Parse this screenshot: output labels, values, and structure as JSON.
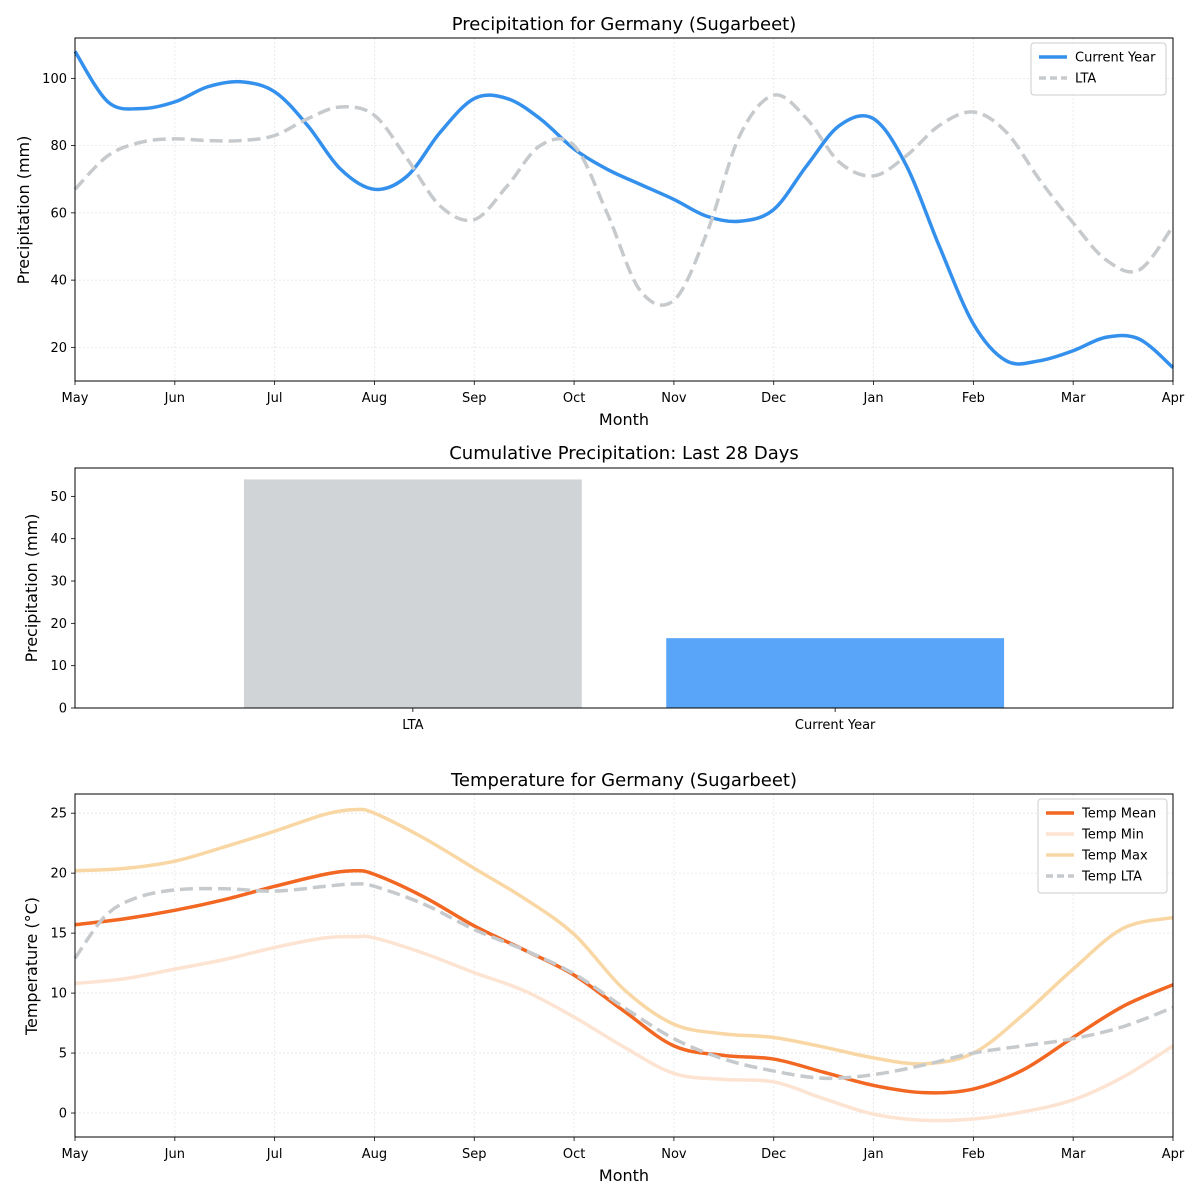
{
  "chart_data": [
    {
      "type": "line",
      "title": "Precipitation for Germany (Sugarbeet)",
      "xlabel": "Month",
      "ylabel": "Precipitation (mm)",
      "categories": [
        "May",
        "Jun",
        "Jul",
        "Aug",
        "Sep",
        "Oct",
        "Nov",
        "Dec",
        "Jan",
        "Feb",
        "Mar",
        "Apr"
      ],
      "xlim": [
        0,
        11
      ],
      "ylim": [
        10,
        112
      ],
      "yticks": [
        20,
        40,
        60,
        80,
        100
      ],
      "grid": true,
      "legend": "top-right",
      "series": [
        {
          "name": "Current Year",
          "color": "#3490ed",
          "style": "solid",
          "x": [
            0,
            0.33,
            0.66,
            1.0,
            1.33,
            1.66,
            2.0,
            2.33,
            2.66,
            3.0,
            3.33,
            3.66,
            4.0,
            4.33,
            4.66,
            5.0,
            5.33,
            5.66,
            6.0,
            6.33,
            6.66,
            7.0,
            7.33,
            7.66,
            8.0,
            8.33,
            8.66,
            9.0,
            9.33,
            9.66,
            10.0,
            10.33,
            10.66,
            11.0
          ],
          "values": [
            108,
            93,
            91,
            93,
            97.5,
            99,
            96,
            86,
            73,
            67,
            71,
            84,
            94,
            94,
            88,
            79,
            73,
            68.5,
            64,
            59,
            57.5,
            61,
            74,
            86,
            88,
            74,
            50,
            27,
            16,
            16,
            19,
            23,
            22.5,
            14
          ]
        },
        {
          "name": "LTA",
          "color": "#c7cacd",
          "style": "dashed",
          "x": [
            0,
            0.33,
            0.66,
            1.0,
            1.33,
            1.66,
            2.0,
            2.33,
            2.66,
            3.0,
            3.33,
            3.66,
            4.0,
            4.33,
            4.66,
            5.0,
            5.33,
            5.66,
            6.0,
            6.33,
            6.66,
            7.0,
            7.33,
            7.66,
            8.0,
            8.33,
            8.66,
            9.0,
            9.33,
            9.66,
            10.0,
            10.33,
            10.66,
            11.0
          ],
          "values": [
            67,
            77,
            81,
            82,
            81.5,
            81.5,
            83,
            88,
            91.5,
            89,
            76,
            62,
            58,
            68,
            80,
            80,
            60,
            37,
            34,
            54,
            83,
            95,
            88,
            75,
            71,
            77,
            86,
            90,
            84,
            70,
            57,
            46,
            43,
            56
          ]
        }
      ]
    },
    {
      "type": "bar",
      "title": "Cumulative Precipitation: Last 28 Days",
      "xlabel": "",
      "ylabel": "Precipitation (mm)",
      "categories": [
        "LTA",
        "Current Year"
      ],
      "values": [
        54,
        16.5
      ],
      "colors": [
        "#d0d4d7",
        "#59a5f9"
      ],
      "ylim": [
        0,
        56.7
      ],
      "yticks": [
        0,
        10,
        20,
        30,
        40,
        50
      ]
    },
    {
      "type": "line",
      "title": "Temperature for Germany (Sugarbeet)",
      "xlabel": "Month",
      "ylabel": "Temperature (°C)",
      "categories": [
        "May",
        "Jun",
        "Jul",
        "Aug",
        "Sep",
        "Oct",
        "Nov",
        "Dec",
        "Jan",
        "Feb",
        "Mar",
        "Apr"
      ],
      "xlim": [
        0,
        11
      ],
      "ylim": [
        -2,
        26.6
      ],
      "yticks": [
        0,
        5,
        10,
        15,
        20,
        25
      ],
      "grid": true,
      "legend": "top-right",
      "series": [
        {
          "name": "Temp Mean",
          "color": "#f26722",
          "style": "solid",
          "x": [
            0,
            0.5,
            1.0,
            1.5,
            2.0,
            2.5,
            2.8,
            3.0,
            3.5,
            4.0,
            4.5,
            5.0,
            5.5,
            6.0,
            6.5,
            7.0,
            7.5,
            8.0,
            8.5,
            9.0,
            9.5,
            10.0,
            10.5,
            11.0
          ],
          "values": [
            15.7,
            16.2,
            16.9,
            17.8,
            18.9,
            19.9,
            20.2,
            19.9,
            18.0,
            15.6,
            13.6,
            11.5,
            8.5,
            5.6,
            4.8,
            4.5,
            3.4,
            2.3,
            1.7,
            2.0,
            3.6,
            6.3,
            8.9,
            10.7
          ]
        },
        {
          "name": "Temp Min",
          "color": "#fde3d1",
          "style": "solid",
          "x": [
            0,
            0.5,
            1.0,
            1.5,
            2.0,
            2.5,
            2.8,
            3.0,
            3.5,
            4.0,
            4.5,
            5.0,
            5.5,
            6.0,
            6.5,
            7.0,
            7.5,
            8.0,
            8.5,
            9.0,
            9.5,
            10.0,
            10.5,
            11.0
          ],
          "values": [
            10.8,
            11.2,
            12.0,
            12.8,
            13.8,
            14.6,
            14.7,
            14.6,
            13.3,
            11.7,
            10.2,
            8.0,
            5.5,
            3.3,
            2.8,
            2.6,
            1.2,
            -0.1,
            -0.6,
            -0.5,
            0.1,
            1.1,
            3.0,
            5.6
          ]
        },
        {
          "name": "Temp Max",
          "color": "#f9d7a4",
          "style": "solid",
          "x": [
            0,
            0.5,
            1.0,
            1.5,
            2.0,
            2.5,
            2.8,
            3.0,
            3.5,
            4.0,
            4.5,
            5.0,
            5.5,
            6.0,
            6.5,
            7.0,
            7.5,
            8.0,
            8.5,
            9.0,
            9.5,
            10.0,
            10.5,
            11.0
          ],
          "values": [
            20.2,
            20.4,
            21.0,
            22.2,
            23.5,
            24.9,
            25.3,
            25.0,
            22.9,
            20.4,
            17.9,
            14.9,
            10.3,
            7.4,
            6.6,
            6.3,
            5.5,
            4.6,
            4.1,
            5.0,
            8.2,
            12.0,
            15.4,
            16.3
          ]
        },
        {
          "name": "Temp LTA",
          "color": "#c7cacd",
          "style": "dashed",
          "x": [
            0,
            0.3,
            0.6,
            1.0,
            1.5,
            2.0,
            2.5,
            2.8,
            3.0,
            3.5,
            4.0,
            4.5,
            5.0,
            5.5,
            6.0,
            6.5,
            7.0,
            7.5,
            8.0,
            8.5,
            9.0,
            9.5,
            10.0,
            10.5,
            11.0
          ],
          "values": [
            12.9,
            16.4,
            17.9,
            18.6,
            18.7,
            18.5,
            18.9,
            19.1,
            18.9,
            17.4,
            15.3,
            13.6,
            11.6,
            8.8,
            6.2,
            4.5,
            3.5,
            2.9,
            3.2,
            4.0,
            5.0,
            5.6,
            6.2,
            7.2,
            8.8
          ]
        }
      ]
    }
  ]
}
